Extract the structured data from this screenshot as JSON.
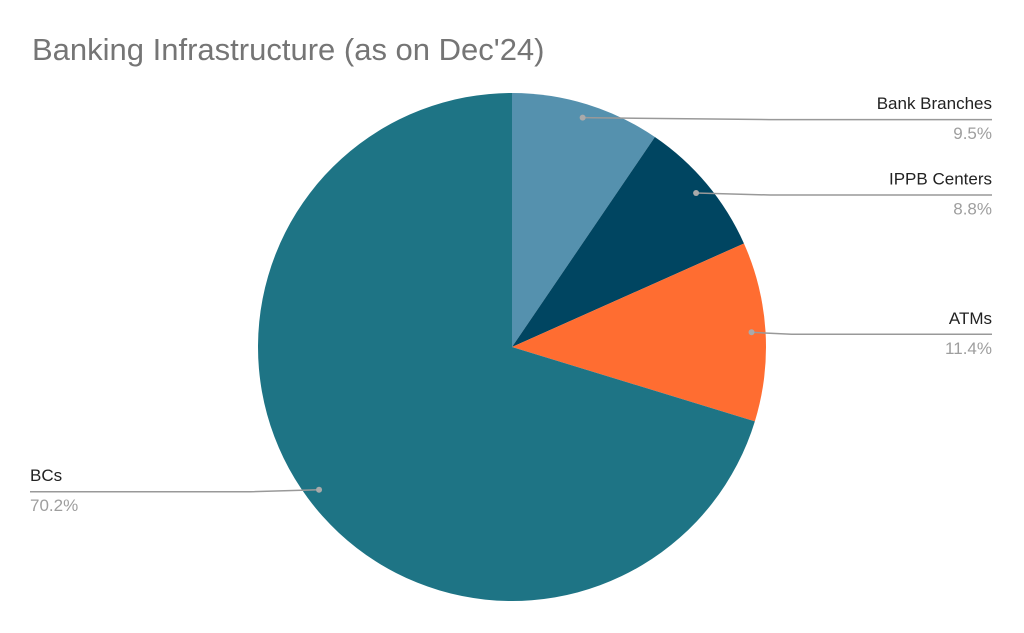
{
  "chart_data": {
    "type": "pie",
    "title": "Banking Infrastructure (as on Dec'24)",
    "categories": [
      "Bank Branches",
      "IPPB Centers",
      "ATMs",
      "BCs"
    ],
    "values": [
      9.5,
      8.8,
      11.4,
      70.2
    ],
    "value_labels": [
      "9.5%",
      "8.8%",
      "11.4%",
      "70.2%"
    ],
    "colors": [
      "#5591ae",
      "#004561",
      "#ff6d31",
      "#1e7485"
    ]
  }
}
